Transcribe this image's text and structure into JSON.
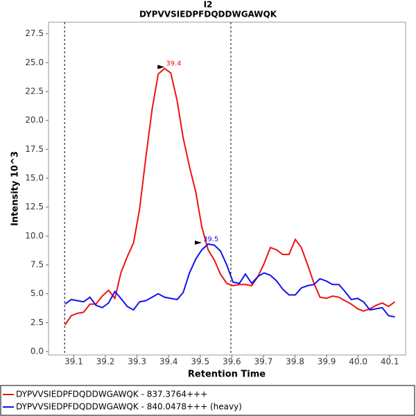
{
  "chart_data": {
    "type": "line",
    "title": "I2",
    "subtitle": "DYPVVSIEDPFDQDDWGAWQK",
    "x_label": "Retention Time",
    "y_label": "Intensity 10^3",
    "xlim": [
      39.02,
      40.15
    ],
    "ylim": [
      -0.3,
      28.5
    ],
    "xticks": [
      39.1,
      39.2,
      39.3,
      39.4,
      39.5,
      39.6,
      39.7,
      39.8,
      39.9,
      {
        "value": 40.0,
        "label": "40.0"
      },
      40.1
    ],
    "yticks": [
      {
        "value": 0,
        "label": "0.0"
      },
      2.5,
      {
        "value": 5,
        "label": "5.0"
      },
      7.5,
      {
        "value": 10,
        "label": "10.0"
      },
      12.5,
      {
        "value": 15,
        "label": "15.0"
      },
      17.5,
      {
        "value": 20,
        "label": "20.0"
      },
      22.5,
      {
        "value": 25,
        "label": "25.0"
      },
      27.5
    ],
    "vlines": [
      39.071,
      39.597
    ],
    "x": [
      39.072,
      39.092,
      39.111,
      39.131,
      39.151,
      39.17,
      39.19,
      39.21,
      39.23,
      39.249,
      39.269,
      39.289,
      39.308,
      39.328,
      39.348,
      39.367,
      39.387,
      39.407,
      39.427,
      39.446,
      39.466,
      39.486,
      39.505,
      39.525,
      39.545,
      39.564,
      39.584,
      39.604,
      39.624,
      39.643,
      39.663,
      39.683,
      39.702,
      39.722,
      39.742,
      39.761,
      39.781,
      39.801,
      39.82,
      39.84,
      39.86,
      39.879,
      39.899,
      39.919,
      39.939,
      39.958,
      39.978,
      39.998,
      40.017,
      40.037,
      40.057,
      40.076,
      40.096,
      40.116
    ],
    "series": [
      {
        "name": "DYPVVSIEDPFDQDDWGAWQK - 837.3764+++",
        "color": "#ee1111",
        "values": [
          2.3,
          3.1,
          3.3,
          3.4,
          4.1,
          4.1,
          4.8,
          5.3,
          4.6,
          6.8,
          8.2,
          9.4,
          12.3,
          16.8,
          21.0,
          24.0,
          24.5,
          24.1,
          21.7,
          18.5,
          16.0,
          13.8,
          10.8,
          8.8,
          7.9,
          6.7,
          5.9,
          5.7,
          5.8,
          5.8,
          5.7,
          6.5,
          7.6,
          9.0,
          8.8,
          8.4,
          8.4,
          9.7,
          9.0,
          7.5,
          5.9,
          4.7,
          4.6,
          4.8,
          4.7,
          4.4,
          4.1,
          3.7,
          3.5,
          3.7,
          4.0,
          4.2,
          3.9,
          4.3
        ]
      },
      {
        "name": "DYPVVSIEDPFDQDDWGAWQK - 840.0478+++ (heavy)",
        "color": "#1111ee",
        "values": [
          4.1,
          4.5,
          4.4,
          4.3,
          4.7,
          4.0,
          3.8,
          4.2,
          5.2,
          4.6,
          3.9,
          3.6,
          4.3,
          4.4,
          4.7,
          5.0,
          4.7,
          4.6,
          4.5,
          5.1,
          6.8,
          8.0,
          8.8,
          9.3,
          9.2,
          8.7,
          7.5,
          6.0,
          5.9,
          6.7,
          5.9,
          6.5,
          6.8,
          6.6,
          6.1,
          5.4,
          4.9,
          4.9,
          5.5,
          5.7,
          5.8,
          6.3,
          6.1,
          5.8,
          5.8,
          5.2,
          4.5,
          4.6,
          4.3,
          3.6,
          3.7,
          3.8,
          3.1,
          3.0
        ]
      }
    ],
    "annotations": [
      {
        "x": 39.387,
        "y": 24.5,
        "label": "39.4",
        "color": "#ee1111"
      },
      {
        "x": 39.505,
        "y": 9.3,
        "label": "39.5",
        "color": "#1111ee"
      }
    ]
  }
}
